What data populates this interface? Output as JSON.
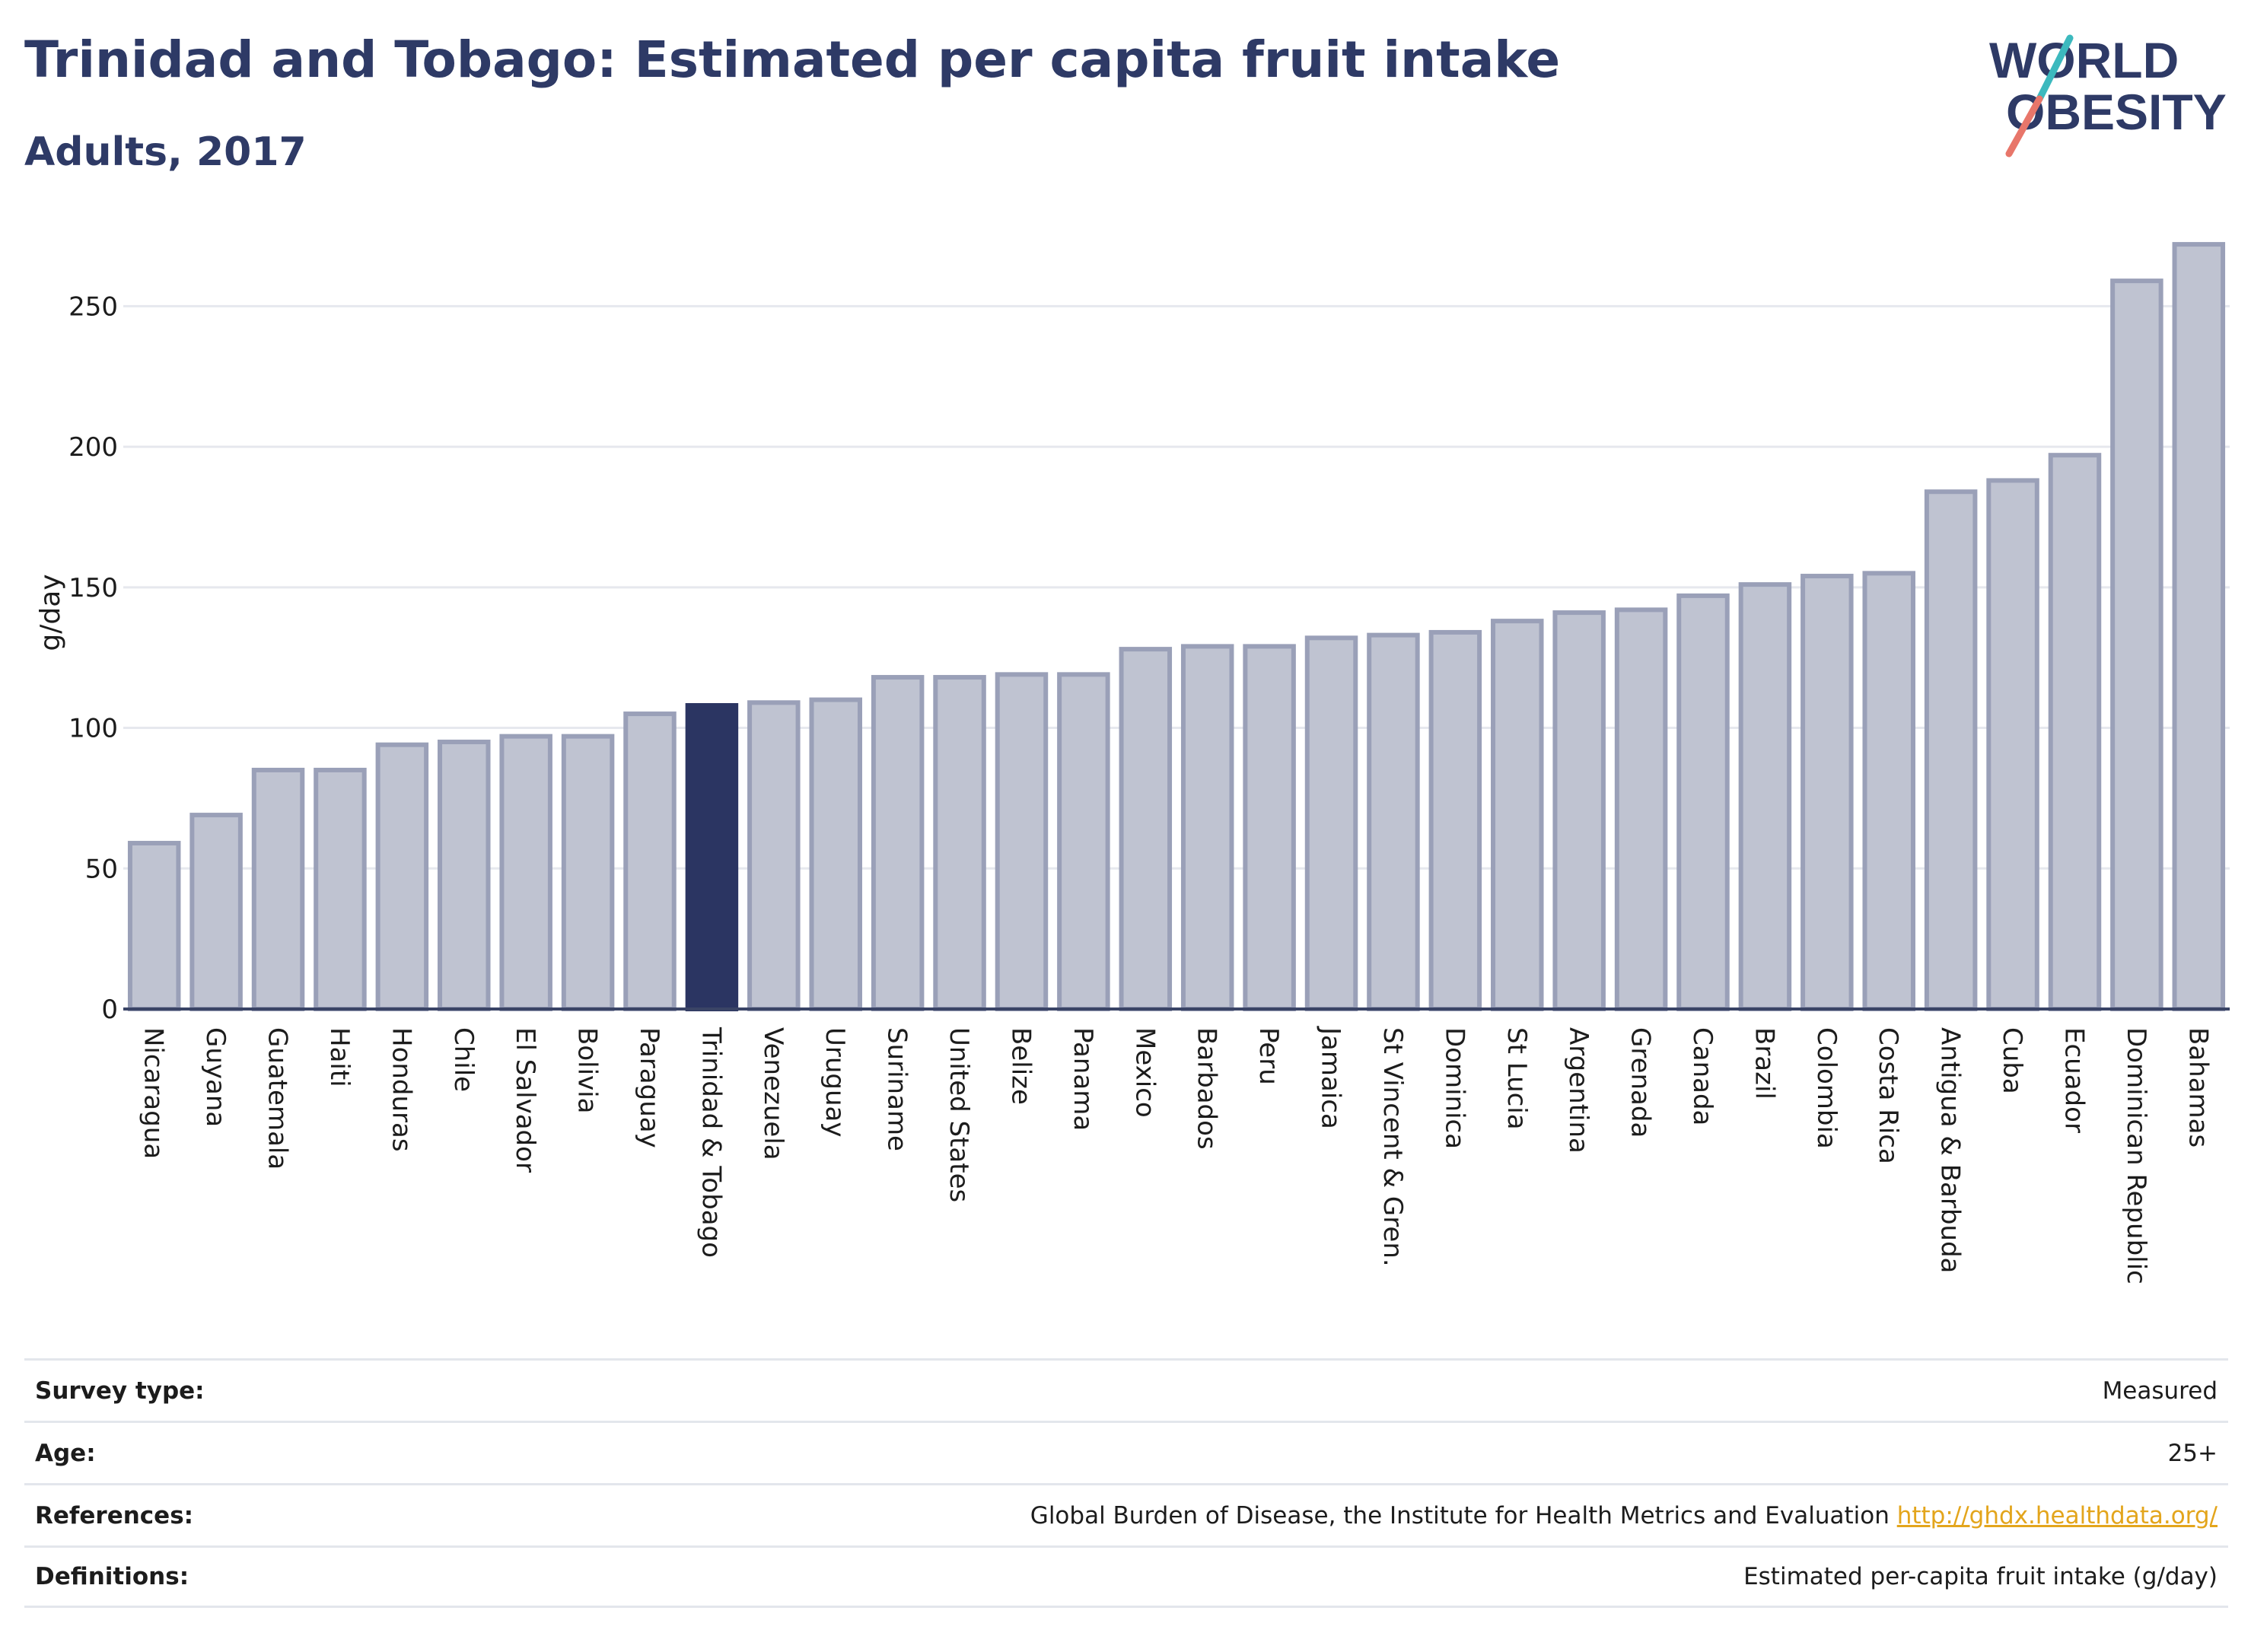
{
  "header": {
    "title": "Trinidad and Tobago: Estimated per capita fruit intake",
    "subtitle": "Adults, 2017"
  },
  "logo": {
    "line1": "WORLD",
    "line2": "OBESITY"
  },
  "colors": {
    "bar_fill": "#bfc3d1",
    "bar_stroke": "#9aa0b8",
    "highlight": "#2b3562",
    "grid": "#e6e8ee",
    "accent_teal": "#3cb9be",
    "accent_coral": "#e8766a"
  },
  "chart_data": {
    "type": "bar",
    "ylabel": "g/day",
    "xlabel": "",
    "ylim": [
      0,
      275
    ],
    "yticks": [
      0,
      50,
      100,
      150,
      200,
      250
    ],
    "highlight": "Trinidad & Tobago",
    "categories": [
      "Nicaragua",
      "Guyana",
      "Guatemala",
      "Haiti",
      "Honduras",
      "Chile",
      "El Salvador",
      "Bolivia",
      "Paraguay",
      "Trinidad & Tobago",
      "Venezuela",
      "Uruguay",
      "Suriname",
      "United States",
      "Belize",
      "Panama",
      "Mexico",
      "Barbados",
      "Peru",
      "Jamaica",
      "St Vincent & Gren.",
      "Dominica",
      "St Lucia",
      "Argentina",
      "Grenada",
      "Canada",
      "Brazil",
      "Colombia",
      "Costa Rica",
      "Antigua & Barbuda",
      "Cuba",
      "Ecuador",
      "Dominican Republic",
      "Bahamas"
    ],
    "values": [
      59,
      69,
      85,
      85,
      94,
      95,
      97,
      97,
      105,
      108,
      109,
      110,
      118,
      118,
      119,
      119,
      128,
      129,
      129,
      132,
      133,
      134,
      138,
      141,
      142,
      147,
      151,
      154,
      155,
      184,
      188,
      197,
      259,
      272
    ],
    "grid": true
  },
  "info": [
    {
      "label": "Survey type:",
      "value": "Measured"
    },
    {
      "label": "Age:",
      "value": "25+"
    },
    {
      "label": "References:",
      "value": "Global Burden of Disease, the Institute for Health Metrics and Evaluation",
      "link": "http://ghdx.healthdata.org/"
    },
    {
      "label": "Definitions:",
      "value": "Estimated per-capita fruit intake (g/day)"
    }
  ]
}
